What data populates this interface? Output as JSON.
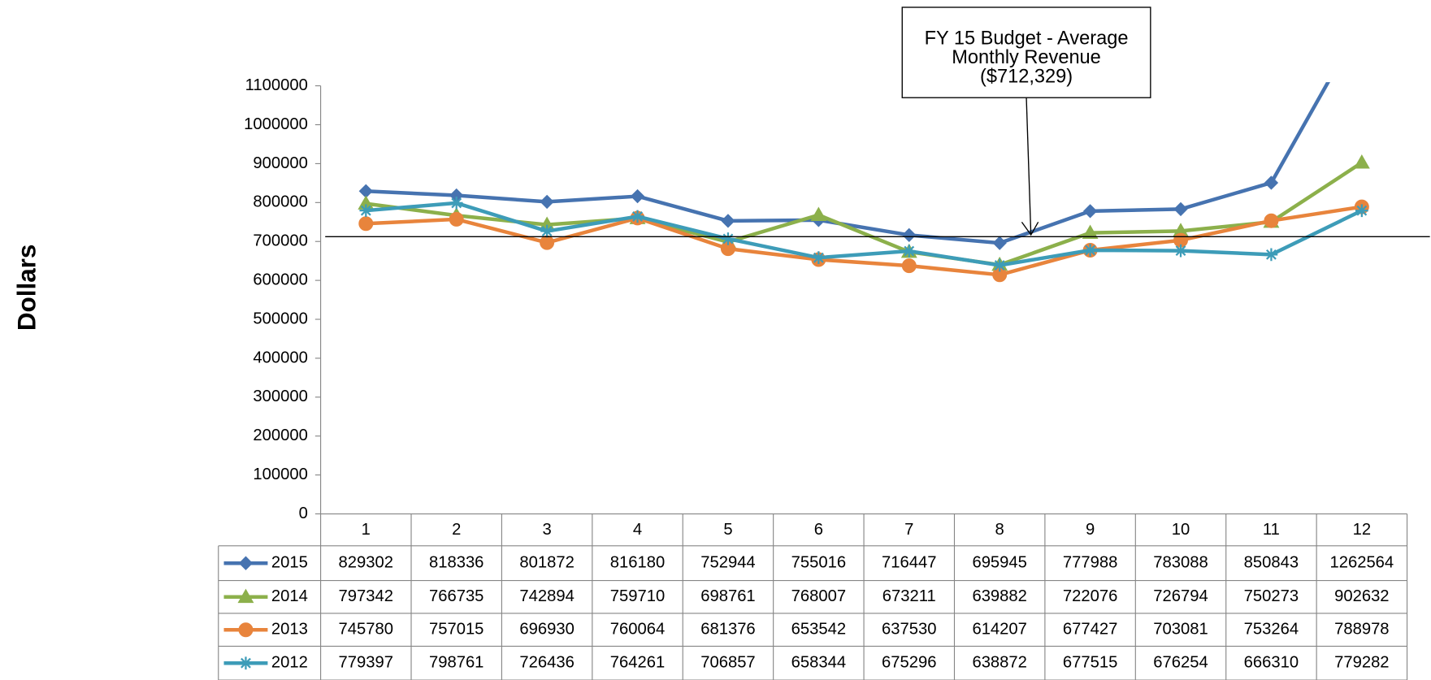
{
  "chart_data": {
    "type": "line",
    "y_label": "Dollars",
    "categories": [
      "1",
      "2",
      "3",
      "4",
      "5",
      "6",
      "7",
      "8",
      "9",
      "10",
      "11",
      "12"
    ],
    "series": [
      {
        "name": "2015",
        "color": "#4673b0",
        "marker": "diamond",
        "values": [
          829302,
          818336,
          801872,
          816180,
          752944,
          755016,
          716447,
          695945,
          777988,
          783088,
          850843,
          1262564
        ]
      },
      {
        "name": "2014",
        "color": "#8cb04b",
        "marker": "triangle",
        "values": [
          797342,
          766735,
          742894,
          759710,
          698761,
          768007,
          673211,
          639882,
          722076,
          726794,
          750273,
          902632
        ]
      },
      {
        "name": "2013",
        "color": "#e8843c",
        "marker": "circle",
        "values": [
          745780,
          757015,
          696930,
          760064,
          681376,
          653542,
          637530,
          614207,
          677427,
          703081,
          753264,
          788978
        ]
      },
      {
        "name": "2012",
        "color": "#3d9cb8",
        "marker": "star",
        "values": [
          779397,
          798761,
          726436,
          764261,
          706857,
          658344,
          675296,
          638872,
          677515,
          676254,
          666310,
          779282
        ]
      }
    ],
    "ylim": [
      0,
      1100000
    ],
    "yticks": [
      0,
      100000,
      200000,
      300000,
      400000,
      500000,
      600000,
      700000,
      800000,
      900000,
      1000000,
      1100000
    ],
    "annotation": {
      "lines": [
        "FY 15 Budget - Average",
        "Monthly Revenue",
        "($712,329)"
      ],
      "value": 712329
    },
    "data_table": true
  }
}
